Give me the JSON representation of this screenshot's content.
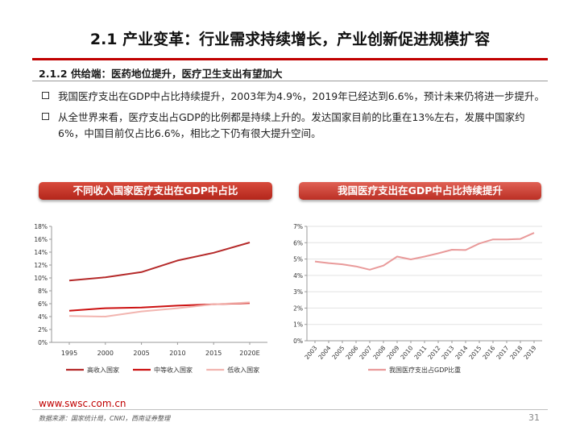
{
  "header": {
    "title": "2.1 产业变革：行业需求持续增长，产业创新促进规模扩容",
    "subtitle": "2.1.2 供给端：医药地位提升，医疗卫生支出有望加大"
  },
  "bullets": [
    "我国医疗支出在GDP中占比持续提升，2003年为4.9%，2019年已经达到6.6%，预计未来仍将进一步提升。",
    "从全世界来看，医疗支出占GDP的比例都是持续上升的。发达国家目前的比重在13%左右，发展中国家约6%，中国目前仅占比6.6%，相比之下仍有很大提升空间。"
  ],
  "banners": {
    "left": "不同收入国家医疗支出在GDP中占比",
    "right": "我国医疗支出在GDP中占比持续提升"
  },
  "chart_data": [
    {
      "type": "line",
      "categories": [
        "1995",
        "2000",
        "2005",
        "2010",
        "2015",
        "2020E"
      ],
      "yticks": [
        "0%",
        "2%",
        "4%",
        "6%",
        "8%",
        "10%",
        "12%",
        "14%",
        "16%",
        "18%"
      ],
      "ylim": [
        0,
        18
      ],
      "series": [
        {
          "name": "高收入国家",
          "color": "#b52a2a",
          "values": [
            9.6,
            10.1,
            10.9,
            12.7,
            13.9,
            15.5
          ]
        },
        {
          "name": "中等收入国家",
          "color": "#cc1111",
          "values": [
            4.9,
            5.3,
            5.4,
            5.7,
            5.9,
            6.1
          ]
        },
        {
          "name": "低收入国家",
          "color": "#f2b5b0",
          "values": [
            4.1,
            4.0,
            4.8,
            5.3,
            5.9,
            6.2
          ]
        }
      ],
      "legend": "bottom",
      "grid": false
    },
    {
      "type": "line",
      "categories": [
        "2003",
        "2004",
        "2005",
        "2006",
        "2007",
        "2008",
        "2009",
        "2010",
        "2011",
        "2012",
        "2013",
        "2014",
        "2015",
        "2016",
        "2017",
        "2018",
        "2019"
      ],
      "yticks": [
        "0%",
        "1%",
        "2%",
        "3%",
        "4%",
        "5%",
        "6%",
        "7%"
      ],
      "ylim": [
        0,
        7
      ],
      "series": [
        {
          "name": "我国医疗支出占GDP比重",
          "color": "#e99a9a",
          "values": [
            4.85,
            4.75,
            4.68,
            4.55,
            4.35,
            4.6,
            5.15,
            4.98,
            5.15,
            5.35,
            5.57,
            5.55,
            5.95,
            6.2,
            6.2,
            6.23,
            6.6
          ]
        }
      ],
      "legend": "bottom",
      "grid": true
    }
  ],
  "footer": {
    "url": "www.swsc.com.cn",
    "source": "数据来源：国家统计局，CNKI，西南证券整理",
    "page": "31"
  }
}
